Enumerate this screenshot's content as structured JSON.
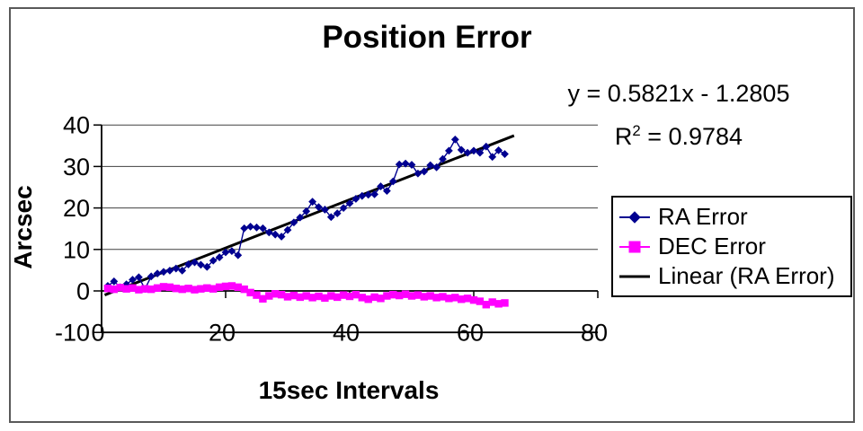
{
  "window": {
    "background": "#ffffff",
    "border_color": "#595959"
  },
  "chart_data": {
    "type": "scatter",
    "title": "Position Error",
    "xlabel": "15sec Intervals",
    "ylabel": "Arcsec",
    "xlim": [
      0,
      80
    ],
    "ylim": [
      -10,
      40
    ],
    "x_ticks": [
      0,
      20,
      40,
      60,
      80
    ],
    "y_ticks": [
      -10,
      0,
      10,
      20,
      30,
      40
    ],
    "grid": "horizontal",
    "colors": {
      "grid": "#404040",
      "axis": "#000000",
      "text": "#000000"
    },
    "annotation": {
      "equation": "y = 0.5821x - 1.2805",
      "r2_base": "R",
      "r2_exp": "2",
      "r2_rest": " = 0.9784"
    },
    "legend": {
      "position": "right",
      "items": [
        {
          "label": "RA Error",
          "marker": "diamond",
          "color": "#000090"
        },
        {
          "label": "DEC Error",
          "marker": "square",
          "color": "#FF00FF"
        },
        {
          "label": "Linear (RA Error)",
          "marker": "line",
          "color": "#000000"
        }
      ]
    },
    "series": [
      {
        "name": "RA Error",
        "color": "#000090",
        "marker": "diamond",
        "x": [
          1,
          2,
          3,
          4,
          5,
          6,
          7,
          8,
          9,
          10,
          11,
          12,
          13,
          14,
          15,
          16,
          17,
          18,
          19,
          20,
          21,
          22,
          23,
          24,
          25,
          26,
          27,
          28,
          29,
          30,
          31,
          32,
          33,
          34,
          35,
          36,
          37,
          38,
          39,
          40,
          41,
          42,
          43,
          44,
          45,
          46,
          47,
          48,
          49,
          50,
          51,
          52,
          53,
          54,
          55,
          56,
          57,
          58,
          59,
          60,
          61,
          62,
          63,
          64,
          65
        ],
        "y": [
          1.2,
          2.3,
          0.9,
          1.6,
          2.7,
          3.3,
          0.5,
          3.5,
          4.2,
          4.6,
          4.9,
          5.4,
          4.9,
          6.4,
          6.9,
          6.3,
          5.8,
          7.3,
          8.1,
          9.3,
          9.6,
          8.6,
          15.1,
          15.5,
          15.3,
          15.1,
          14.1,
          13.6,
          13.1,
          14.7,
          16.5,
          17.7,
          19.2,
          21.5,
          20.2,
          19.6,
          17.8,
          18.7,
          20.0,
          21.1,
          22.2,
          22.9,
          23.2,
          23.3,
          25.2,
          24.1,
          26.4,
          30.5,
          30.7,
          30.4,
          28.3,
          28.8,
          30.3,
          29.8,
          31.8,
          33.8,
          36.5,
          34.0,
          33.3,
          33.8,
          33.3,
          34.8,
          32.3,
          33.9,
          33.0
        ]
      },
      {
        "name": "DEC Error",
        "color": "#FF00FF",
        "marker": "square",
        "x": [
          1,
          2,
          3,
          4,
          5,
          6,
          7,
          8,
          9,
          10,
          11,
          12,
          13,
          14,
          15,
          16,
          17,
          18,
          19,
          20,
          21,
          22,
          23,
          24,
          25,
          26,
          27,
          28,
          29,
          30,
          31,
          32,
          33,
          34,
          35,
          36,
          37,
          38,
          39,
          40,
          41,
          42,
          43,
          44,
          45,
          46,
          47,
          48,
          49,
          50,
          51,
          52,
          53,
          54,
          55,
          56,
          57,
          58,
          59,
          60,
          61,
          62,
          63,
          64,
          65
        ],
        "y": [
          0.6,
          0.4,
          0.8,
          0.5,
          0.7,
          0.3,
          0.5,
          0.4,
          0.7,
          1.0,
          0.9,
          0.6,
          0.4,
          0.6,
          0.3,
          0.5,
          0.7,
          0.5,
          0.9,
          1.1,
          1.2,
          0.9,
          0.4,
          -0.4,
          -1.0,
          -1.9,
          -1.2,
          -0.7,
          -0.9,
          -1.4,
          -1.1,
          -1.5,
          -1.2,
          -1.6,
          -1.3,
          -1.7,
          -1.2,
          -1.5,
          -1.0,
          -1.3,
          -0.9,
          -1.6,
          -2.0,
          -1.5,
          -1.8,
          -1.2,
          -0.9,
          -1.1,
          -0.8,
          -1.2,
          -1.0,
          -1.4,
          -1.2,
          -1.6,
          -1.4,
          -1.8,
          -1.6,
          -2.0,
          -1.8,
          -2.2,
          -2.5,
          -3.3,
          -2.7,
          -3.1,
          -2.9
        ]
      }
    ],
    "trendline": {
      "name": "Linear (RA Error)",
      "color": "#000000",
      "slope": 0.5821,
      "intercept": -1.2805,
      "x_start": 0.5,
      "x_end": 66.5
    }
  }
}
